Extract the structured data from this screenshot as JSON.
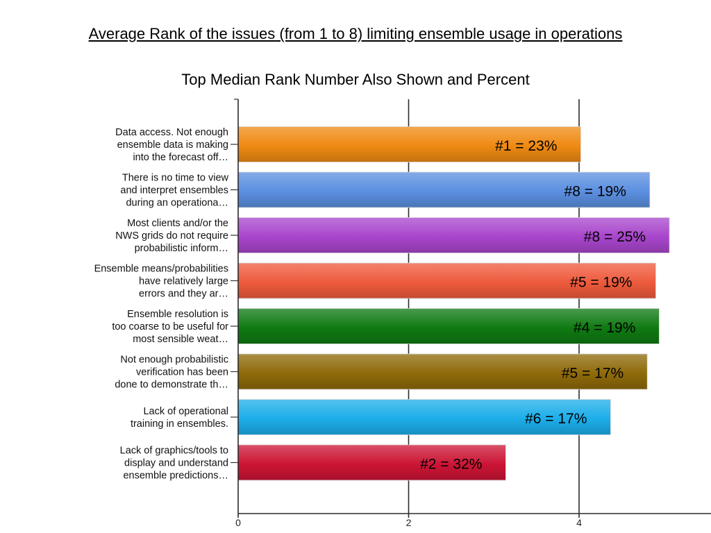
{
  "chart_data": {
    "type": "bar",
    "orientation": "horizontal",
    "title": "Average Rank of the issues (from 1 to 8) limiting ensemble usage in operations",
    "subtitle": "Top Median Rank Number Also Shown and Percent",
    "categories": [
      [
        "Data access. Not enough",
        "ensemble data is making",
        "into the forecast off…"
      ],
      [
        "There is no time to view",
        "and interpret ensembles",
        "during an operationa…"
      ],
      [
        "Most clients and/or the",
        "NWS grids do not require",
        "probabilistic inform…"
      ],
      [
        "Ensemble means/probabilities",
        "have relatively large",
        "errors and they ar…"
      ],
      [
        "Ensemble resolution is",
        "too coarse to be useful for",
        "most sensible weat…"
      ],
      [
        "Not enough probabilistic",
        "verification has been",
        "done to demonstrate th…"
      ],
      [
        "Lack of operational",
        "training in ensembles."
      ],
      [
        "Lack of graphics/tools to",
        "display and understand",
        "ensemble predictions…"
      ]
    ],
    "values": [
      4.02,
      4.83,
      5.06,
      4.9,
      4.94,
      4.8,
      4.37,
      3.14
    ],
    "bar_labels": [
      "#1 = 23%",
      "#8 = 19%",
      "#8 = 25%",
      "#5 = 19%",
      "#4 = 19%",
      "#5 = 17%",
      "#6 = 17%",
      "#2 = 32%"
    ],
    "colors": [
      "#ef8a12",
      "#5b8fe0",
      "#a845cc",
      "#ee5a3c",
      "#0f7a12",
      "#8f6a0a",
      "#1caeea",
      "#cc1535"
    ],
    "x_ticks": [
      "0",
      "2",
      "4"
    ],
    "xlim": [
      0,
      5.5
    ],
    "gridlines_at": [
      0,
      2,
      4
    ],
    "grid": true,
    "legend": "none"
  }
}
